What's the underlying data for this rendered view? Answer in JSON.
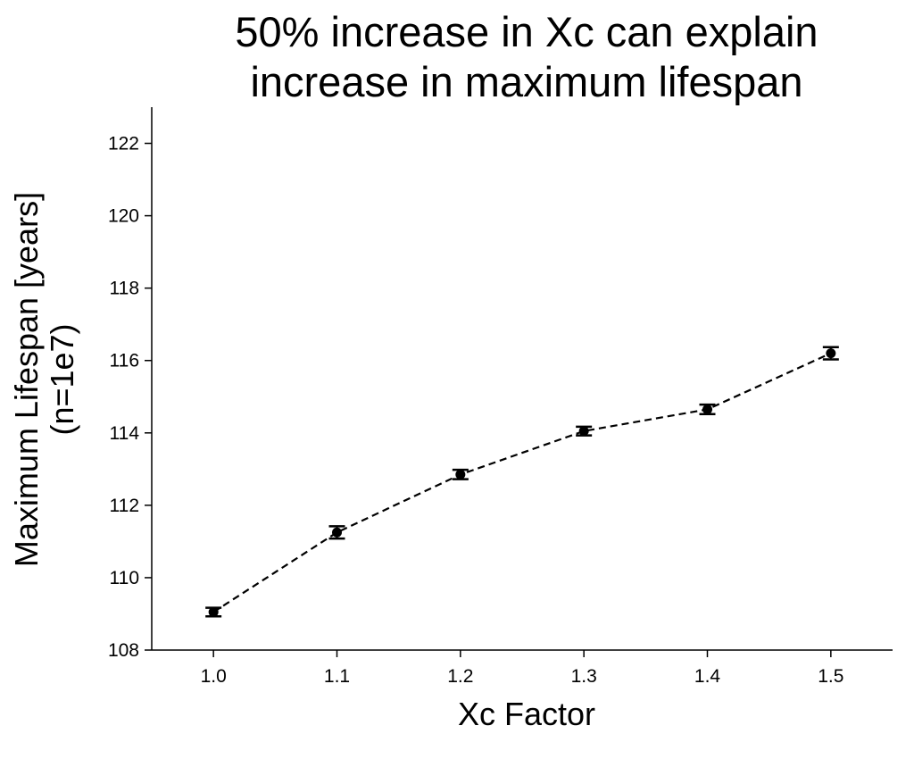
{
  "chart_data": {
    "type": "line",
    "title_lines": [
      "50% increase in Xc can explain",
      "increase in maximum lifespan"
    ],
    "xlabel": "Xc Factor",
    "ylabel_lines": [
      "Maximum Lifespan [years]",
      "(n=1e7)"
    ],
    "x": [
      1.0,
      1.1,
      1.2,
      1.3,
      1.4,
      1.5
    ],
    "x_tick_labels": [
      "1.0",
      "1.1",
      "1.2",
      "1.3",
      "1.4",
      "1.5"
    ],
    "y_ticks": [
      108,
      110,
      112,
      114,
      116,
      118,
      120,
      122
    ],
    "y_tick_labels": [
      "108",
      "110",
      "112",
      "114",
      "116",
      "118",
      "120",
      "122"
    ],
    "ylim": [
      108,
      123
    ],
    "xlim": [
      0.95,
      1.55
    ],
    "series": [
      {
        "values": [
          109.05,
          111.25,
          112.85,
          114.05,
          114.65,
          116.2
        ],
        "errors": [
          0.12,
          0.17,
          0.13,
          0.12,
          0.13,
          0.17
        ],
        "line_style": "dashed",
        "color": "#000000",
        "marker": "circle"
      }
    ],
    "grid": false
  }
}
